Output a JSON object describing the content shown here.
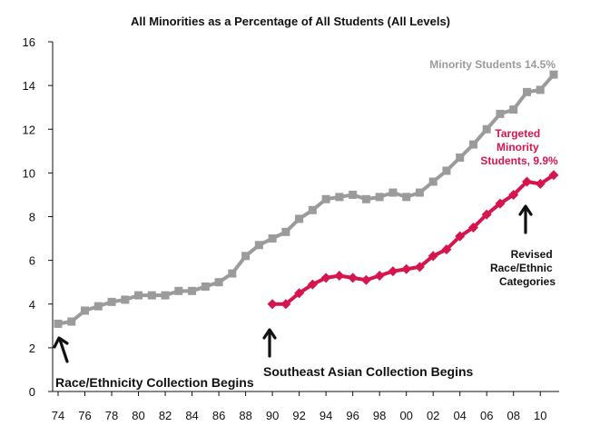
{
  "chart_data": {
    "type": "line",
    "title": "All Minorities as a Percentage of All Students (All Levels)",
    "xlabel": "",
    "ylabel": "",
    "ylim": [
      0,
      16
    ],
    "yticks": [
      "0",
      "2",
      "4",
      "6",
      "8",
      "10",
      "12",
      "14",
      "16"
    ],
    "xlim": [
      1974,
      2011
    ],
    "xticks": [
      {
        "year": 1974,
        "label": "74"
      },
      {
        "year": 1976,
        "label": "76"
      },
      {
        "year": 1978,
        "label": "78"
      },
      {
        "year": 1980,
        "label": "80"
      },
      {
        "year": 1982,
        "label": "82"
      },
      {
        "year": 1984,
        "label": "84"
      },
      {
        "year": 1986,
        "label": "86"
      },
      {
        "year": 1988,
        "label": "88"
      },
      {
        "year": 1990,
        "label": "90"
      },
      {
        "year": 1992,
        "label": "92"
      },
      {
        "year": 1994,
        "label": "94"
      },
      {
        "year": 1996,
        "label": "96"
      },
      {
        "year": 1998,
        "label": "98"
      },
      {
        "year": 2000,
        "label": "00"
      },
      {
        "year": 2002,
        "label": "02"
      },
      {
        "year": 2004,
        "label": "04"
      },
      {
        "year": 2006,
        "label": "06"
      },
      {
        "year": 2008,
        "label": "08"
      },
      {
        "year": 2010,
        "label": "10"
      }
    ],
    "grid": false,
    "legend": "none",
    "series": [
      {
        "name": "Minority Students",
        "color": "#9b9b9b",
        "marker": "square",
        "x": [
          1974,
          1975,
          1976,
          1977,
          1978,
          1979,
          1980,
          1981,
          1982,
          1983,
          1984,
          1985,
          1986,
          1987,
          1988,
          1989,
          1990,
          1991,
          1992,
          1993,
          1994,
          1995,
          1996,
          1997,
          1998,
          1999,
          2000,
          2001,
          2002,
          2003,
          2004,
          2005,
          2006,
          2007,
          2008,
          2009,
          2010,
          2011
        ],
        "y": [
          3.1,
          3.2,
          3.7,
          3.9,
          4.1,
          4.2,
          4.4,
          4.4,
          4.4,
          4.6,
          4.6,
          4.8,
          5.0,
          5.4,
          6.2,
          6.7,
          7.0,
          7.3,
          7.9,
          8.3,
          8.8,
          8.9,
          9.0,
          8.8,
          8.9,
          9.1,
          8.9,
          9.1,
          9.6,
          10.1,
          10.7,
          11.3,
          12.0,
          12.7,
          12.9,
          13.7,
          13.8,
          14.5
        ]
      },
      {
        "name": "Targeted Minority Students",
        "color": "#d6144e",
        "marker": "diamond",
        "x": [
          1990,
          1991,
          1992,
          1993,
          1994,
          1995,
          1996,
          1997,
          1998,
          1999,
          2000,
          2001,
          2002,
          2003,
          2004,
          2005,
          2006,
          2007,
          2008,
          2009,
          2010,
          2011
        ],
        "y": [
          4.0,
          4.0,
          4.5,
          4.9,
          5.2,
          5.3,
          5.2,
          5.1,
          5.3,
          5.5,
          5.6,
          5.7,
          6.2,
          6.5,
          7.1,
          7.5,
          8.1,
          8.6,
          9.0,
          9.6,
          9.5,
          9.9
        ]
      }
    ],
    "annotations": {
      "minority_label": "Minority Students  14.5%",
      "targeted_label": [
        "Targeted",
        "Minority",
        "Students, 9.9%"
      ],
      "race_collection": "Race/Ethnicity Collection Begins",
      "asian_collection": "Southeast Asian Collection Begins",
      "revised_categories": [
        "Revised",
        "Race/Ethnic",
        "Categories"
      ]
    }
  }
}
